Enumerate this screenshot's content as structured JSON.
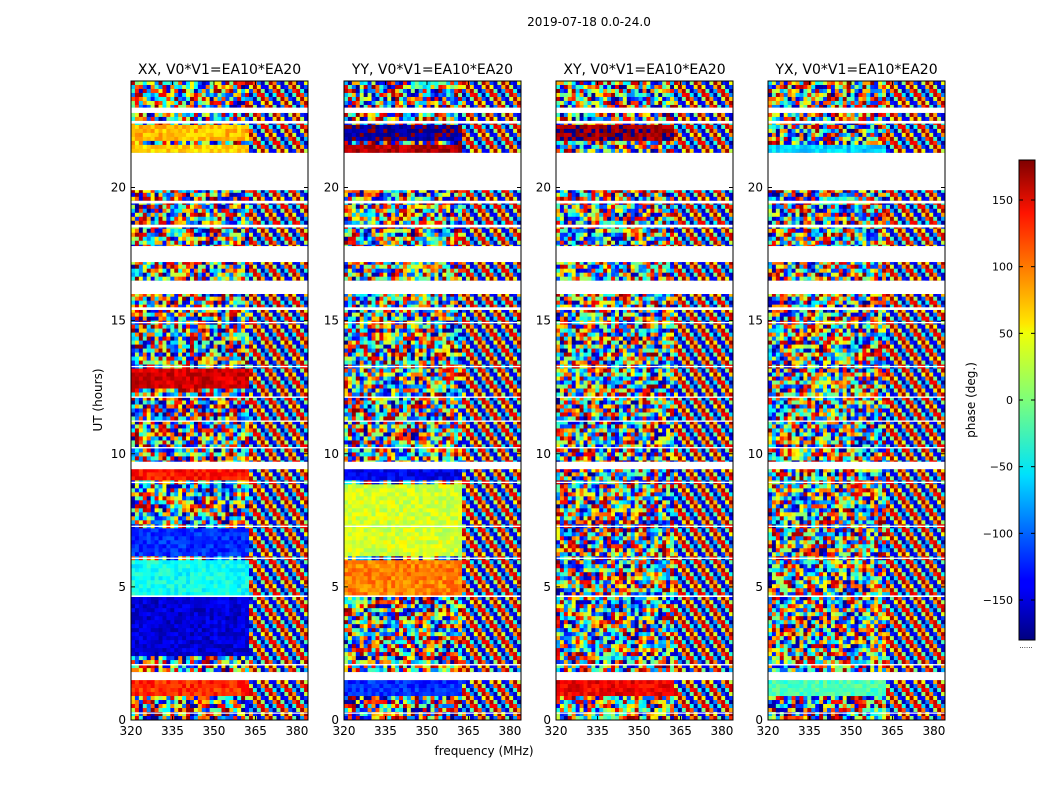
{
  "figure": {
    "suptitle": "2019-07-18 0.0-24.0",
    "shared_xlabel": "frequency (MHz)",
    "shared_ylabel": "UT (hours)",
    "colorbar_label": "phase (deg.)",
    "colorbar_footer": "......"
  },
  "chart_data": [
    {
      "type": "heatmap",
      "title": "XX, V0*V1=EA10*EA20",
      "xlabel": "frequency (MHz)",
      "ylabel": "UT (hours)",
      "xlim": [
        320,
        384
      ],
      "ylim": [
        0,
        24
      ],
      "xticks": [
        320,
        335,
        350,
        365,
        380
      ],
      "yticks": [
        0,
        5,
        10,
        15,
        20
      ],
      "value_range": [
        -180,
        180
      ],
      "colormap": "jet",
      "bands": [
        {
          "t0": 0.0,
          "t1": 0.9,
          "v": null
        },
        {
          "t0": 0.9,
          "t1": 1.45,
          "v": 120,
          "f_cut": 362
        },
        {
          "t0": 2.4,
          "t1": 4.6,
          "v": -150,
          "f_cut": 362
        },
        {
          "t0": 4.7,
          "t1": 6.0,
          "v": -40,
          "f_cut": 362
        },
        {
          "t0": 6.1,
          "t1": 7.2,
          "v": -120,
          "f_cut": 362
        },
        {
          "t0": 9.0,
          "t1": 9.4,
          "v": 130,
          "f_cut": 362
        },
        {
          "t0": 12.4,
          "t1": 13.2,
          "v": 150,
          "f_cut": 362
        },
        {
          "t0": 21.3,
          "t1": 21.6,
          "v": 60,
          "f_cut": 362
        },
        {
          "t0": 21.7,
          "t1": 22.4,
          "v": 70,
          "f_cut": 362
        }
      ],
      "gaps": [
        [
          0.25,
          0.28
        ],
        [
          1.5,
          1.8
        ],
        [
          2.05,
          2.1
        ],
        [
          4.62,
          4.68
        ],
        [
          6.05,
          6.1
        ],
        [
          7.25,
          7.3
        ],
        [
          8.9,
          8.95
        ],
        [
          9.42,
          9.7
        ],
        [
          10.2,
          10.25
        ],
        [
          11.2,
          11.25
        ],
        [
          12.1,
          12.15
        ],
        [
          13.25,
          13.3
        ],
        [
          14.9,
          14.95
        ],
        [
          15.4,
          15.5
        ],
        [
          16.0,
          16.5
        ],
        [
          17.2,
          17.8
        ],
        [
          18.5,
          18.6
        ],
        [
          19.4,
          19.5
        ],
        [
          19.9,
          21.3
        ],
        [
          22.4,
          22.5
        ],
        [
          22.8,
          23.0
        ]
      ]
    },
    {
      "type": "heatmap",
      "title": "YY, V0*V1=EA10*EA20",
      "xlabel": "frequency (MHz)",
      "ylabel": "UT (hours)",
      "xlim": [
        320,
        384
      ],
      "ylim": [
        0,
        24
      ],
      "xticks": [
        320,
        335,
        350,
        365,
        380
      ],
      "yticks": [
        0,
        5,
        10,
        15,
        20
      ],
      "value_range": [
        -180,
        180
      ],
      "colormap": "jet",
      "bands": [
        {
          "t0": 0.9,
          "t1": 1.45,
          "v": -120,
          "f_cut": 362
        },
        {
          "t0": 4.7,
          "t1": 6.0,
          "v": 90,
          "f_cut": 362
        },
        {
          "t0": 6.1,
          "t1": 8.8,
          "v": 30,
          "f_cut": 362
        },
        {
          "t0": 9.0,
          "t1": 9.4,
          "v": -140,
          "f_cut": 362
        },
        {
          "t0": 21.3,
          "t1": 21.6,
          "v": 160,
          "f_cut": 362
        },
        {
          "t0": 21.7,
          "t1": 22.4,
          "v": -170,
          "f_cut": 362
        }
      ],
      "gaps": [
        [
          0.25,
          0.28
        ],
        [
          1.5,
          1.8
        ],
        [
          2.05,
          2.1
        ],
        [
          4.62,
          4.68
        ],
        [
          6.05,
          6.1
        ],
        [
          7.25,
          7.3
        ],
        [
          8.9,
          8.95
        ],
        [
          9.42,
          9.7
        ],
        [
          10.2,
          10.25
        ],
        [
          11.2,
          11.25
        ],
        [
          12.1,
          12.15
        ],
        [
          13.25,
          13.3
        ],
        [
          14.9,
          14.95
        ],
        [
          15.4,
          15.5
        ],
        [
          16.0,
          16.5
        ],
        [
          17.2,
          17.8
        ],
        [
          18.5,
          18.6
        ],
        [
          19.4,
          19.5
        ],
        [
          19.9,
          21.3
        ],
        [
          22.4,
          22.5
        ],
        [
          22.8,
          23.0
        ]
      ]
    },
    {
      "type": "heatmap",
      "title": "XY, V0*V1=EA10*EA20",
      "xlabel": "frequency (MHz)",
      "ylabel": "UT (hours)",
      "xlim": [
        320,
        384
      ],
      "ylim": [
        0,
        24
      ],
      "xticks": [
        320,
        335,
        350,
        365,
        380
      ],
      "yticks": [
        0,
        5,
        10,
        15,
        20
      ],
      "value_range": [
        -180,
        180
      ],
      "colormap": "jet",
      "bands": [
        {
          "t0": 0.9,
          "t1": 1.45,
          "v": 140,
          "f_cut": 362
        },
        {
          "t0": 21.7,
          "t1": 22.4,
          "v": 170,
          "f_cut": 362
        }
      ],
      "gaps": [
        [
          0.25,
          0.28
        ],
        [
          1.5,
          1.8
        ],
        [
          2.05,
          2.1
        ],
        [
          4.62,
          4.68
        ],
        [
          6.05,
          6.1
        ],
        [
          7.25,
          7.3
        ],
        [
          8.9,
          8.95
        ],
        [
          9.42,
          9.7
        ],
        [
          10.2,
          10.25
        ],
        [
          11.2,
          11.25
        ],
        [
          12.1,
          12.15
        ],
        [
          13.25,
          13.3
        ],
        [
          14.9,
          14.95
        ],
        [
          15.4,
          15.5
        ],
        [
          16.0,
          16.5
        ],
        [
          17.2,
          17.8
        ],
        [
          18.5,
          18.6
        ],
        [
          19.4,
          19.5
        ],
        [
          19.9,
          21.3
        ],
        [
          22.4,
          22.5
        ],
        [
          22.8,
          23.0
        ]
      ]
    },
    {
      "type": "heatmap",
      "title": "YX, V0*V1=EA10*EA20",
      "xlabel": "frequency (MHz)",
      "ylabel": "UT (hours)",
      "xlim": [
        320,
        384
      ],
      "ylim": [
        0,
        24
      ],
      "xticks": [
        320,
        335,
        350,
        365,
        380
      ],
      "yticks": [
        0,
        5,
        10,
        15,
        20
      ],
      "value_range": [
        -180,
        180
      ],
      "colormap": "jet",
      "bands": [
        {
          "t0": 0.9,
          "t1": 1.45,
          "v": -20,
          "f_cut": 362
        },
        {
          "t0": 21.3,
          "t1": 21.6,
          "v": -60,
          "f_cut": 362
        }
      ],
      "gaps": [
        [
          0.25,
          0.28
        ],
        [
          1.5,
          1.8
        ],
        [
          2.05,
          2.1
        ],
        [
          4.62,
          4.68
        ],
        [
          6.05,
          6.1
        ],
        [
          7.25,
          7.3
        ],
        [
          8.9,
          8.95
        ],
        [
          9.42,
          9.7
        ],
        [
          10.2,
          10.25
        ],
        [
          11.2,
          11.25
        ],
        [
          12.1,
          12.15
        ],
        [
          13.25,
          13.3
        ],
        [
          14.9,
          14.95
        ],
        [
          15.4,
          15.5
        ],
        [
          16.0,
          16.5
        ],
        [
          17.2,
          17.8
        ],
        [
          18.5,
          18.6
        ],
        [
          19.4,
          19.5
        ],
        [
          19.9,
          21.3
        ],
        [
          22.4,
          22.5
        ],
        [
          22.8,
          23.0
        ]
      ]
    }
  ],
  "colorbar": {
    "range": [
      -180,
      180
    ],
    "ticks": [
      -150,
      -100,
      -50,
      0,
      50,
      100,
      150
    ],
    "tick_labels": [
      "−150",
      "−100",
      "−50",
      "0",
      "50",
      "100",
      "150"
    ]
  }
}
